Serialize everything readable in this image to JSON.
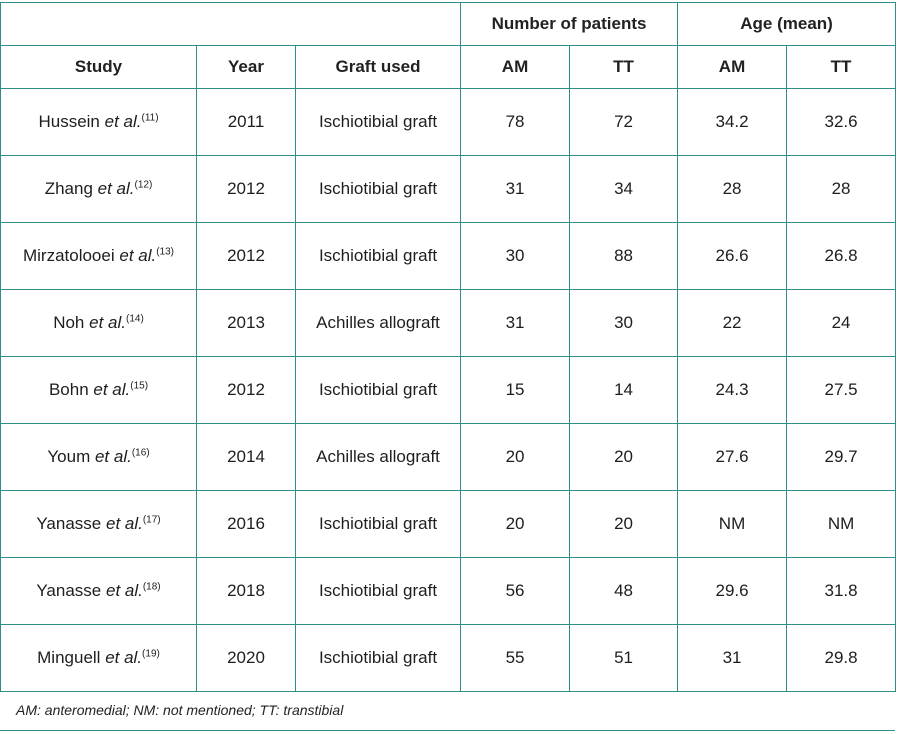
{
  "headers": {
    "study": "Study",
    "year": "Year",
    "graft": "Graft used",
    "patients_group": "Number of patients",
    "age_group": "Age (mean)",
    "am": "AM",
    "tt": "TT"
  },
  "rows": [
    {
      "name": "Hussein",
      "etal": "et al.",
      "ref": "(11)",
      "year": "2011",
      "graft": "Ischiotibial graft",
      "pat_am": "78",
      "pat_tt": "72",
      "age_am": "34.2",
      "age_tt": "32.6"
    },
    {
      "name": "Zhang",
      "etal": "et al.",
      "ref": "(12)",
      "year": "2012",
      "graft": "Ischiotibial graft",
      "pat_am": "31",
      "pat_tt": "34",
      "age_am": "28",
      "age_tt": "28"
    },
    {
      "name": "Mirzatolooei",
      "etal": "et al.",
      "ref": "(13)",
      "year": "2012",
      "graft": "Ischiotibial graft",
      "pat_am": "30",
      "pat_tt": "88",
      "age_am": "26.6",
      "age_tt": "26.8"
    },
    {
      "name": "Noh",
      "etal": "et al.",
      "ref": "(14)",
      "year": "2013",
      "graft": "Achilles allograft",
      "pat_am": "31",
      "pat_tt": "30",
      "age_am": "22",
      "age_tt": "24"
    },
    {
      "name": "Bohn",
      "etal": "et al.",
      "ref": "(15)",
      "year": "2012",
      "graft": "Ischiotibial graft",
      "pat_am": "15",
      "pat_tt": "14",
      "age_am": "24.3",
      "age_tt": "27.5"
    },
    {
      "name": "Youm",
      "etal": "et al.",
      "ref": "(16)",
      "year": "2014",
      "graft": "Achilles allograft",
      "pat_am": "20",
      "pat_tt": "20",
      "age_am": "27.6",
      "age_tt": "29.7"
    },
    {
      "name": "Yanasse",
      "etal": "et al.",
      "ref": "(17)",
      "year": "2016",
      "graft": "Ischiotibial graft",
      "pat_am": "20",
      "pat_tt": "20",
      "age_am": "NM",
      "age_tt": "NM"
    },
    {
      "name": "Yanasse",
      "etal": "et al.",
      "ref": "(18)",
      "year": "2018",
      "graft": "Ischiotibial graft",
      "pat_am": "56",
      "pat_tt": "48",
      "age_am": "29.6",
      "age_tt": "31.8"
    },
    {
      "name": "Minguell",
      "etal": "et al.",
      "ref": "(19)",
      "year": "2020",
      "graft": "Ischiotibial graft",
      "pat_am": "55",
      "pat_tt": "51",
      "age_am": "31",
      "age_tt": "29.8"
    }
  ],
  "footnote": "AM: anteromedial; NM: not mentioned; TT: transtibial",
  "colors": {
    "border": "#2e8f86",
    "text": "#1e1e1e"
  }
}
